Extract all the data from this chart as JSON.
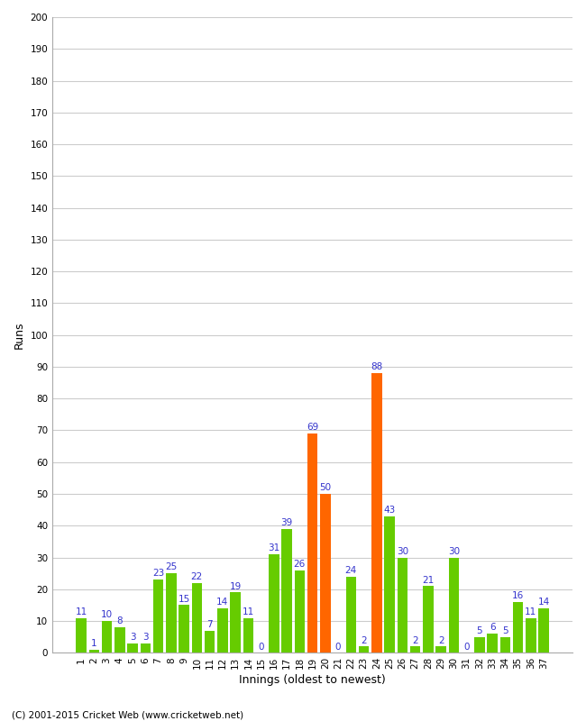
{
  "innings": [
    1,
    2,
    3,
    4,
    5,
    6,
    7,
    8,
    9,
    10,
    11,
    12,
    13,
    14,
    15,
    16,
    17,
    18,
    19,
    20,
    21,
    22,
    23,
    24,
    25,
    26,
    27,
    28,
    29,
    30,
    31,
    32,
    33,
    34,
    35,
    36,
    37
  ],
  "values": [
    11,
    1,
    10,
    8,
    3,
    3,
    23,
    25,
    15,
    22,
    7,
    14,
    19,
    11,
    0,
    31,
    39,
    26,
    69,
    50,
    0,
    24,
    2,
    88,
    43,
    30,
    2,
    21,
    2,
    30,
    0,
    5,
    6,
    5,
    16,
    11,
    14
  ],
  "colors": [
    "#66cc00",
    "#66cc00",
    "#66cc00",
    "#66cc00",
    "#66cc00",
    "#66cc00",
    "#66cc00",
    "#66cc00",
    "#66cc00",
    "#66cc00",
    "#66cc00",
    "#66cc00",
    "#66cc00",
    "#66cc00",
    "#66cc00",
    "#66cc00",
    "#66cc00",
    "#66cc00",
    "#ff6600",
    "#ff6600",
    "#66cc00",
    "#66cc00",
    "#66cc00",
    "#ff6600",
    "#66cc00",
    "#66cc00",
    "#66cc00",
    "#66cc00",
    "#66cc00",
    "#66cc00",
    "#66cc00",
    "#66cc00",
    "#66cc00",
    "#66cc00",
    "#66cc00",
    "#66cc00",
    "#66cc00"
  ],
  "xlabel": "Innings (oldest to newest)",
  "ylabel": "Runs",
  "ylim": [
    0,
    200
  ],
  "yticks": [
    0,
    10,
    20,
    30,
    40,
    50,
    60,
    70,
    80,
    90,
    100,
    110,
    120,
    130,
    140,
    150,
    160,
    170,
    180,
    190,
    200
  ],
  "bg_color": "#ffffff",
  "grid_color": "#cccccc",
  "label_color": "#3333cc",
  "tick_label_fontsize": 7.5,
  "axis_label_fontsize": 9,
  "value_fontsize": 7.5,
  "copyright": "(C) 2001-2015 Cricket Web (www.cricketweb.net)"
}
